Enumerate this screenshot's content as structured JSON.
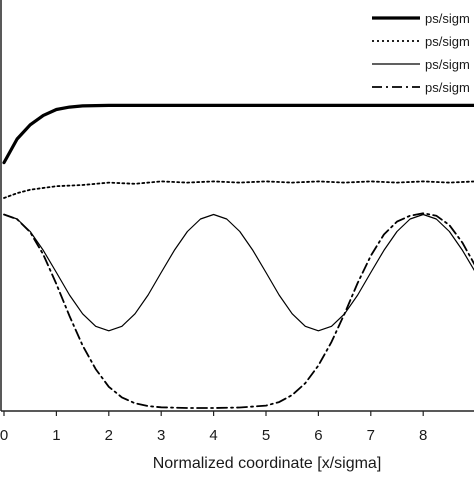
{
  "chart_data": {
    "type": "line",
    "xlabel": "Normalized coordinate [x/sigma]",
    "ylabel": "",
    "xlim": [
      0,
      9.8
    ],
    "ylim": [
      0,
      1.35
    ],
    "grid": false,
    "legend_position": "top-right",
    "x_ticks": [
      "0",
      "1",
      "2",
      "3",
      "4",
      "5",
      "6",
      "7",
      "8"
    ],
    "series": [
      {
        "name": "ps/sigm",
        "style": "solid-thick",
        "color": "#000000",
        "x": [
          0,
          0.25,
          0.5,
          0.75,
          1.0,
          1.25,
          1.5,
          2,
          3,
          4,
          5,
          6,
          7,
          8,
          9,
          9.8
        ],
        "y": [
          1.04,
          1.14,
          1.2,
          1.24,
          1.265,
          1.275,
          1.28,
          1.282,
          1.282,
          1.282,
          1.282,
          1.282,
          1.282,
          1.282,
          1.282,
          1.283
        ]
      },
      {
        "name": "ps/sigm",
        "style": "dotted",
        "color": "#000000",
        "x": [
          0,
          0.25,
          0.5,
          1.0,
          1.5,
          2,
          2.5,
          3,
          3.5,
          4,
          4.5,
          5,
          5.5,
          6,
          6.5,
          7,
          7.5,
          8,
          8.5,
          9,
          9.5,
          9.8
        ],
        "y": [
          0.89,
          0.91,
          0.925,
          0.94,
          0.945,
          0.955,
          0.95,
          0.96,
          0.955,
          0.96,
          0.955,
          0.96,
          0.955,
          0.96,
          0.955,
          0.96,
          0.955,
          0.96,
          0.955,
          0.96,
          0.955,
          0.955
        ]
      },
      {
        "name": "ps/sigm",
        "style": "solid-thin",
        "color": "#000000",
        "x": [
          0,
          0.25,
          0.5,
          0.75,
          1.0,
          1.25,
          1.5,
          1.75,
          2.0,
          2.25,
          2.5,
          2.75,
          3.0,
          3.25,
          3.5,
          3.75,
          4.0,
          4.25,
          4.5,
          4.75,
          5.0,
          5.25,
          5.5,
          5.75,
          6.0,
          6.25,
          6.5,
          6.75,
          7.0,
          7.25,
          7.5,
          7.75,
          8.0,
          8.25,
          8.5,
          8.75,
          9.0,
          9.25,
          9.5,
          9.75,
          9.8
        ],
        "y": [
          0.82,
          0.801,
          0.748,
          0.668,
          0.574,
          0.479,
          0.399,
          0.346,
          0.327,
          0.346,
          0.399,
          0.479,
          0.574,
          0.668,
          0.748,
          0.801,
          0.82,
          0.801,
          0.748,
          0.668,
          0.574,
          0.479,
          0.399,
          0.346,
          0.327,
          0.346,
          0.399,
          0.479,
          0.574,
          0.668,
          0.748,
          0.801,
          0.82,
          0.801,
          0.748,
          0.668,
          0.574,
          0.479,
          0.399,
          0.346,
          0.34
        ]
      },
      {
        "name": "ps/sigm",
        "style": "dash-dot",
        "color": "#000000",
        "x": [
          0,
          0.25,
          0.5,
          0.75,
          1.0,
          1.25,
          1.5,
          1.75,
          2.0,
          2.25,
          2.5,
          2.75,
          3.0,
          3.5,
          4.0,
          4.5,
          5.0,
          5.25,
          5.5,
          5.75,
          6.0,
          6.25,
          6.5,
          6.75,
          7.0,
          7.25,
          7.5,
          7.75,
          8.0,
          8.25,
          8.5,
          8.75,
          9.0,
          9.25,
          9.5,
          9.8
        ],
        "y": [
          0.82,
          0.8,
          0.745,
          0.65,
          0.525,
          0.39,
          0.265,
          0.165,
          0.09,
          0.045,
          0.02,
          0.008,
          0.003,
          0.0,
          0.0,
          0.002,
          0.01,
          0.025,
          0.055,
          0.105,
          0.18,
          0.28,
          0.4,
          0.53,
          0.645,
          0.735,
          0.79,
          0.815,
          0.825,
          0.815,
          0.775,
          0.7,
          0.6,
          0.49,
          0.39,
          0.33
        ]
      }
    ]
  }
}
